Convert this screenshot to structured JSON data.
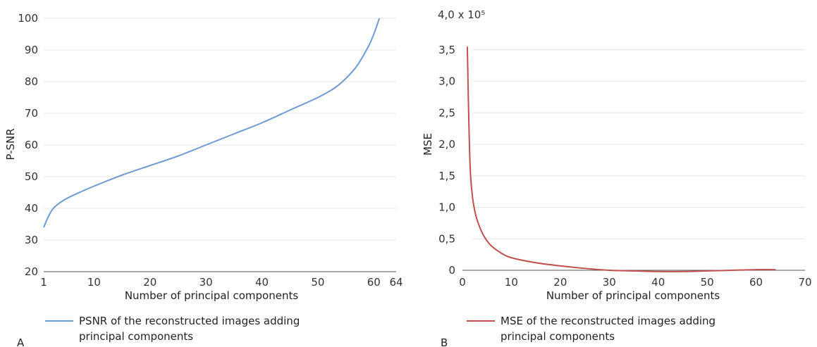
{
  "chart_data": [
    {
      "type": "line",
      "panel_label": "A",
      "xlabel": "Number of principal components",
      "ylabel": "P-SNR",
      "xlim": [
        1,
        64
      ],
      "ylim": [
        20,
        100
      ],
      "x_ticks": [
        1,
        10,
        20,
        30,
        40,
        50,
        60,
        64
      ],
      "y_ticks": [
        20,
        30,
        40,
        50,
        60,
        70,
        80,
        90,
        100
      ],
      "grid": true,
      "legend_position": "bottom-left",
      "series": [
        {
          "name": "PSNR of the reconstructed images adding principal components",
          "legend_lines": [
            "PSNR of the reconstructed images adding",
            "principal components"
          ],
          "color": "#6f9bd1",
          "x": [
            1,
            2,
            3,
            5,
            8,
            10,
            15,
            20,
            25,
            30,
            35,
            40,
            45,
            50,
            53,
            55,
            57,
            59,
            60,
            61
          ],
          "y": [
            34,
            38,
            40.5,
            43,
            45.5,
            47,
            50.5,
            53.5,
            56.5,
            60,
            63.5,
            67,
            71,
            75,
            78,
            81,
            85,
            91,
            95,
            100
          ]
        }
      ]
    },
    {
      "type": "line",
      "panel_label": "B",
      "xlabel": "Number of principal components",
      "ylabel": "MSE",
      "y_scale_note": "4,0 x 10⁵",
      "xlim": [
        0,
        70
      ],
      "ylim": [
        0,
        4.0
      ],
      "x_ticks": [
        "0",
        "10",
        "20",
        "30",
        "40",
        "50",
        "60",
        "70"
      ],
      "y_ticks": [
        "0",
        "0,5",
        "1,0",
        "1,5",
        "2,0",
        "2,5",
        "3,0",
        "3,5"
      ],
      "y_tick_values": [
        0,
        0.5,
        1.0,
        1.5,
        2.0,
        2.5,
        3.0,
        3.5
      ],
      "grid": true,
      "legend_position": "bottom-left",
      "series": [
        {
          "name": "MSE of the reconstructed images adding principal components",
          "legend_lines": [
            "MSE of the reconstructed images adding",
            "principal components"
          ],
          "color": "#c0504d",
          "x": [
            1,
            1.3,
            1.6,
            2,
            2.5,
            3,
            4,
            5,
            6,
            8,
            10,
            15,
            20,
            25,
            30,
            35,
            40,
            45,
            50,
            55,
            60,
            64
          ],
          "y": [
            3.55,
            2.4,
            1.6,
            1.2,
            0.95,
            0.8,
            0.6,
            0.47,
            0.38,
            0.27,
            0.2,
            0.12,
            0.07,
            0.03,
            0.0,
            -0.01,
            -0.02,
            -0.02,
            -0.01,
            0.0,
            0.01,
            0.01
          ]
        }
      ]
    }
  ]
}
